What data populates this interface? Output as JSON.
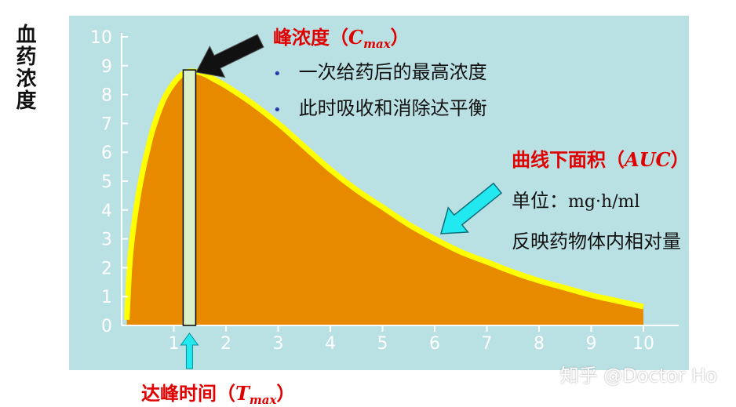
{
  "chart_data": {
    "type": "area",
    "ylabel": "血药浓度",
    "xlim": [
      0,
      10
    ],
    "ylim": [
      0,
      10
    ],
    "xticks": [
      "1",
      "2",
      "3",
      "4",
      "5",
      "6",
      "7",
      "8",
      "9",
      "10"
    ],
    "yticks": [
      "0",
      "1",
      "2",
      "3",
      "4",
      "5",
      "6",
      "7",
      "8",
      "9",
      "10"
    ],
    "x": [
      0.1,
      0.15,
      0.2,
      0.3,
      0.4,
      0.5,
      0.6,
      0.8,
      1.0,
      1.2,
      1.4,
      1.6,
      1.8,
      2.0,
      2.5,
      3.0,
      3.5,
      4.0,
      4.5,
      5.0,
      5.5,
      6.0,
      6.5,
      7.0,
      7.5,
      8.0,
      8.5,
      9.0,
      9.5,
      10.0
    ],
    "y": [
      0.2,
      2.0,
      3.0,
      4.3,
      5.3,
      6.1,
      6.8,
      7.8,
      8.4,
      8.75,
      8.8,
      8.7,
      8.5,
      8.3,
      7.7,
      7.0,
      6.2,
      5.4,
      4.7,
      4.1,
      3.5,
      3.0,
      2.55,
      2.2,
      1.85,
      1.55,
      1.3,
      1.05,
      0.85,
      0.65
    ],
    "tmax": 1.3,
    "cmax": 8.8,
    "colors": {
      "background": "#b9e0e3",
      "fill": "#e88a00",
      "outline": "#ffff00",
      "tmax_bar": "#d9f0c8"
    }
  },
  "annotations": {
    "cmax_title": "峰浓度（",
    "cmax_symbol": "C",
    "cmax_sub": "max",
    "cmax_close": "）",
    "cmax_points": [
      "一次给药后的最高浓度",
      "此时吸收和消除达平衡"
    ],
    "auc_title": "曲线下面积（",
    "auc_symbol": "AUC",
    "auc_close": "）",
    "auc_unit_label": "单位：",
    "auc_unit": "mg·h/ml",
    "auc_desc": "反映药物体内相对量",
    "tmax_title": "达峰时间（",
    "tmax_symbol": "T",
    "tmax_sub": "max",
    "tmax_close": "）"
  },
  "watermark": "知乎 @Doctor Ho"
}
